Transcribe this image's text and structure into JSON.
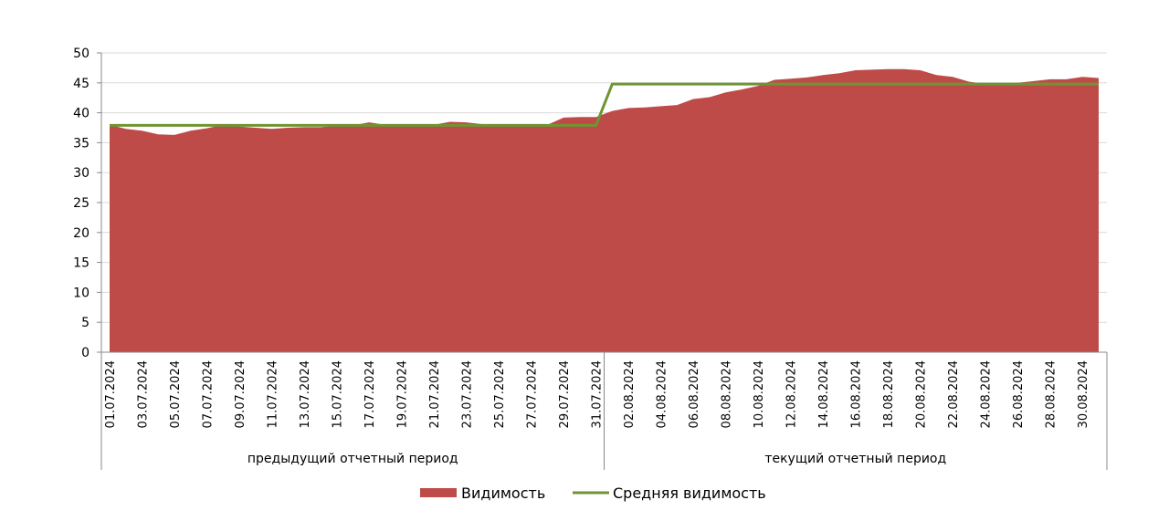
{
  "chart_data": {
    "type": "area",
    "title": "",
    "xlabel": "",
    "ylabel": "",
    "ylim": [
      0,
      50
    ],
    "yticks": [
      0,
      5,
      10,
      15,
      20,
      25,
      30,
      35,
      40,
      45,
      50
    ],
    "grid": true,
    "legend_position": "bottom",
    "groups": [
      {
        "label": "предыдущий отчетный период",
        "count": 31
      },
      {
        "label": "текущий отчетный период",
        "count": 31
      }
    ],
    "x": [
      "01.07.2024",
      "02.07.2024",
      "03.07.2024",
      "04.07.2024",
      "05.07.2024",
      "06.07.2024",
      "07.07.2024",
      "08.07.2024",
      "09.07.2024",
      "10.07.2024",
      "11.07.2024",
      "12.07.2024",
      "13.07.2024",
      "14.07.2024",
      "15.07.2024",
      "16.07.2024",
      "17.07.2024",
      "18.07.2024",
      "19.07.2024",
      "20.07.2024",
      "21.07.2024",
      "22.07.2024",
      "23.07.2024",
      "24.07.2024",
      "25.07.2024",
      "26.07.2024",
      "27.07.2024",
      "28.07.2024",
      "29.07.2024",
      "30.07.2024",
      "31.07.2024",
      "01.08.2024",
      "02.08.2024",
      "03.08.2024",
      "04.08.2024",
      "05.08.2024",
      "06.08.2024",
      "07.08.2024",
      "08.08.2024",
      "09.08.2024",
      "10.08.2024",
      "11.08.2024",
      "12.08.2024",
      "13.08.2024",
      "14.08.2024",
      "15.08.2024",
      "16.08.2024",
      "17.08.2024",
      "18.08.2024",
      "19.08.2024",
      "20.08.2024",
      "21.08.2024",
      "22.08.2024",
      "23.08.2024",
      "24.08.2024",
      "25.08.2024",
      "26.08.2024",
      "27.08.2024",
      "28.08.2024",
      "29.08.2024",
      "30.08.2024",
      "31.08.2024"
    ],
    "series": [
      {
        "name": "Видимость",
        "type": "area",
        "color": "#BE4B48",
        "values": [
          38,
          37.3,
          37.0,
          36.4,
          36.3,
          37.0,
          37.4,
          38.0,
          37.7,
          37.5,
          37.3,
          37.5,
          37.6,
          37.6,
          37.8,
          37.9,
          38.4,
          38.0,
          38.0,
          38.1,
          38.0,
          38.5,
          38.4,
          38.1,
          38.0,
          38.0,
          38.0,
          38.0,
          39.2,
          39.3,
          39.3,
          40.3,
          40.8,
          40.9,
          41.1,
          41.3,
          42.3,
          42.6,
          43.4,
          43.9,
          44.5,
          45.5,
          45.7,
          45.9,
          46.3,
          46.6,
          47.1,
          47.2,
          47.3,
          47.3,
          47.1,
          46.3,
          46.0,
          45.2,
          44.8,
          44.8,
          45.0,
          45.3,
          45.6,
          45.6,
          46.0,
          45.8
        ]
      },
      {
        "name": "Средняя видимость",
        "type": "line",
        "color": "#6E9533",
        "values": [
          37.9,
          37.9,
          37.9,
          37.9,
          37.9,
          37.9,
          37.9,
          37.9,
          37.9,
          37.9,
          37.9,
          37.9,
          37.9,
          37.9,
          37.9,
          37.9,
          37.9,
          37.9,
          37.9,
          37.9,
          37.9,
          37.9,
          37.9,
          37.9,
          37.9,
          37.9,
          37.9,
          37.9,
          37.9,
          37.9,
          37.9,
          44.8,
          44.8,
          44.8,
          44.8,
          44.8,
          44.8,
          44.8,
          44.8,
          44.8,
          44.8,
          44.8,
          44.8,
          44.8,
          44.8,
          44.8,
          44.8,
          44.8,
          44.8,
          44.8,
          44.8,
          44.8,
          44.8,
          44.8,
          44.8,
          44.8,
          44.8,
          44.8,
          44.8,
          44.8,
          44.8,
          44.8
        ]
      }
    ]
  }
}
